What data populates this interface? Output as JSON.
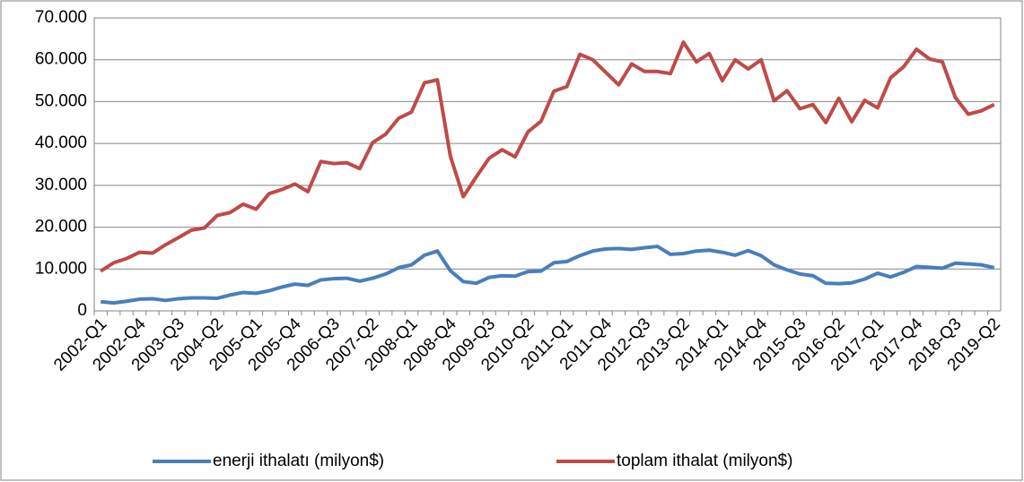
{
  "chart_data": {
    "type": "line",
    "categories": [
      "2002-Q1",
      null,
      null,
      "2002-Q4",
      null,
      null,
      "2003-Q3",
      null,
      null,
      "2004-Q2",
      null,
      null,
      "2005-Q1",
      null,
      null,
      "2005-Q4",
      null,
      null,
      "2006-Q3",
      null,
      null,
      "2007-Q2",
      null,
      null,
      "2008-Q1",
      null,
      null,
      "2008-Q4",
      null,
      null,
      "2009-Q3",
      null,
      null,
      "2010-Q2",
      null,
      null,
      "2011-Q1",
      null,
      null,
      "2011-Q4",
      null,
      null,
      "2012-Q3",
      null,
      null,
      "2013-Q2",
      null,
      null,
      "2014-Q1",
      null,
      null,
      "2014-Q4",
      null,
      null,
      "2015-Q3",
      null,
      null,
      "2016-Q2",
      null,
      null,
      "2017-Q1",
      null,
      null,
      "2017-Q4",
      null,
      null,
      "2018-Q3",
      null,
      null,
      "2019-Q2"
    ],
    "series": [
      {
        "name": "enerji ithalatı (milyon$)",
        "color": "#4a7ebb",
        "values": [
          2200,
          1900,
          2300,
          2800,
          2900,
          2500,
          2900,
          3100,
          3100,
          3000,
          3800,
          4400,
          4200,
          4800,
          5700,
          6400,
          6100,
          7400,
          7700,
          7800,
          7100,
          7800,
          8800,
          10300,
          11000,
          13300,
          14300,
          9600,
          7000,
          6600,
          8000,
          8400,
          8300,
          9400,
          9500,
          11500,
          11800,
          13200,
          14300,
          14800,
          14900,
          14700,
          15100,
          15400,
          13500,
          13700,
          14300,
          14500,
          14000,
          13300,
          14400,
          13200,
          11000,
          9800,
          8800,
          8400,
          6600,
          6500,
          6700,
          7600,
          9000,
          8100,
          9200,
          10600,
          10400,
          10200,
          11400,
          11200,
          11000,
          10300
        ]
      },
      {
        "name": "toplam ithalat (milyon$)",
        "color": "#be4b48",
        "values": [
          9500,
          11500,
          12500,
          14000,
          13800,
          15800,
          17500,
          19300,
          19800,
          22800,
          23500,
          25500,
          24300,
          28000,
          29000,
          30300,
          28500,
          35700,
          35200,
          35400,
          34000,
          40200,
          42200,
          46000,
          47500,
          54500,
          55200,
          37000,
          27300,
          32000,
          36500,
          38500,
          36800,
          42800,
          45300,
          52500,
          53600,
          61300,
          60000,
          57000,
          54000,
          59000,
          57200,
          57200,
          56700,
          64200,
          59500,
          61500,
          55000,
          60000,
          57800,
          60000,
          50200,
          52600,
          48300,
          49300,
          45000,
          50800,
          45200,
          50300,
          48500,
          55700,
          58300,
          62500,
          60200,
          59500,
          51000,
          47000,
          47800,
          49300
        ]
      }
    ],
    "ylim": [
      0,
      70000
    ],
    "yticks": [
      0,
      {
        "value": 10000,
        "label": "10.000"
      },
      {
        "value": 20000,
        "label": "20.000"
      },
      {
        "value": 30000,
        "label": "30.000"
      },
      {
        "value": 40000,
        "label": "40.000"
      },
      {
        "value": 50000,
        "label": "50.000"
      },
      {
        "value": 60000,
        "label": "60.000"
      },
      {
        "value": 70000,
        "label": "70.000"
      }
    ],
    "grid": true,
    "legend": "bottom"
  }
}
